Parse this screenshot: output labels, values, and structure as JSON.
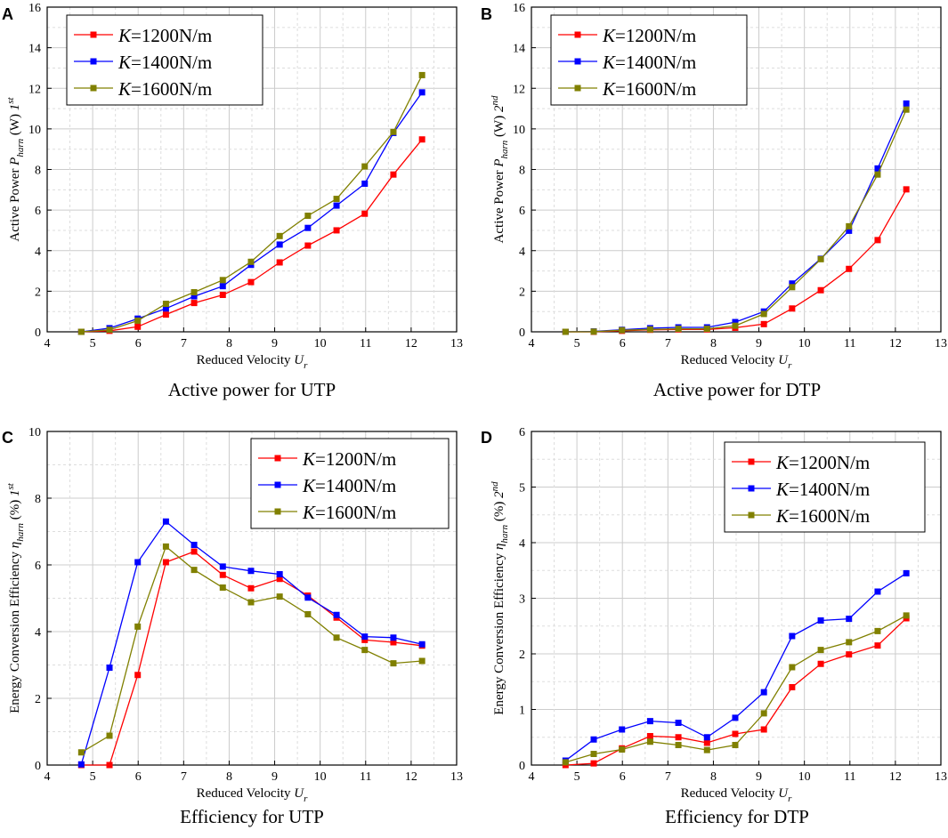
{
  "colors": {
    "k1200": "#ff0000",
    "k1400": "#0000ff",
    "k1600": "#808000",
    "grid": "#cccccc"
  },
  "chart_data": [
    {
      "type": "line",
      "panel": "A",
      "caption": "Active power for UTP",
      "xlabel": "Reduced Velocity ",
      "xlabel_sub": "r",
      "ylabel_pre": "Active Power  ",
      "ylabel_sub": "harn",
      "ylabel_mid": " (W) ",
      "ylabel_tail_sup": "st",
      "ylabel_tail": "1",
      "xlim": [
        4,
        13
      ],
      "ylim": [
        0,
        16
      ],
      "xticks": [
        "4",
        "5",
        "6",
        "7",
        "8",
        "9",
        "10",
        "11",
        "12",
        "13"
      ],
      "yticks": [
        "0",
        "2",
        "4",
        "6",
        "8",
        "10",
        "12",
        "14",
        "16"
      ],
      "legend_pos": "top-left",
      "x": [
        4.75,
        5.37,
        5.99,
        6.61,
        7.23,
        7.86,
        8.48,
        9.11,
        9.73,
        10.36,
        10.98,
        11.61,
        12.24
      ],
      "series": [
        {
          "name": "=1200N/m",
          "k": "K",
          "key": "k1200",
          "values": [
            0,
            0.05,
            0.25,
            0.85,
            1.42,
            1.82,
            2.45,
            3.42,
            4.25,
            5.0,
            5.82,
            7.75,
            9.48
          ]
        },
        {
          "name": "=1400N/m",
          "k": "K",
          "key": "k1400",
          "values": [
            0,
            0.18,
            0.65,
            1.15,
            1.75,
            2.25,
            3.3,
            4.3,
            5.12,
            6.22,
            7.3,
            9.8,
            11.8
          ]
        },
        {
          "name": "=1600N/m",
          "k": "K",
          "key": "k1600",
          "values": [
            0,
            0.1,
            0.55,
            1.38,
            1.95,
            2.55,
            3.45,
            4.72,
            5.72,
            6.55,
            8.15,
            9.85,
            12.65
          ]
        }
      ]
    },
    {
      "type": "line",
      "panel": "B",
      "caption": "Active power for DTP",
      "xlabel": "Reduced Velocity ",
      "xlabel_sub": "r",
      "ylabel_pre": "Active Power  ",
      "ylabel_sub": "harn",
      "ylabel_mid": " (W)  ",
      "ylabel_tail_sup": "nd",
      "ylabel_tail": "2",
      "xlim": [
        4,
        13
      ],
      "ylim": [
        0,
        16
      ],
      "xticks": [
        "4",
        "5",
        "6",
        "7",
        "8",
        "9",
        "10",
        "11",
        "12",
        "13"
      ],
      "yticks": [
        "0",
        "2",
        "4",
        "6",
        "8",
        "10",
        "12",
        "14",
        "16"
      ],
      "legend_pos": "top-left",
      "x": [
        4.75,
        5.37,
        5.99,
        6.61,
        7.23,
        7.86,
        8.48,
        9.11,
        9.73,
        10.36,
        10.98,
        11.61,
        12.24
      ],
      "series": [
        {
          "name": "=1200N/m",
          "k": "K",
          "key": "k1200",
          "values": [
            0,
            0,
            0.05,
            0.1,
            0.12,
            0.12,
            0.2,
            0.38,
            1.15,
            2.05,
            3.1,
            4.52,
            7.02
          ]
        },
        {
          "name": "=1400N/m",
          "k": "K",
          "key": "k1400",
          "values": [
            0,
            0.02,
            0.1,
            0.18,
            0.22,
            0.22,
            0.48,
            1.0,
            2.38,
            3.6,
            4.98,
            8.05,
            11.25
          ]
        },
        {
          "name": "=1600N/m",
          "k": "K",
          "key": "k1600",
          "values": [
            0,
            0.01,
            0.08,
            0.12,
            0.15,
            0.15,
            0.3,
            0.88,
            2.2,
            3.58,
            5.2,
            7.75,
            10.95
          ]
        }
      ]
    },
    {
      "type": "line",
      "panel": "C",
      "caption": "Efficiency for UTP",
      "xlabel": "Reduced Velocity ",
      "xlabel_sub": "r",
      "ylabel_pre": "Energy Conversion Efficiency  ",
      "ylabel_sub": "harn",
      "ylabel_mid": " (%) ",
      "ylabel_tail_sup": "st",
      "ylabel_tail": "1",
      "xlim": [
        4,
        13
      ],
      "ylim": [
        0,
        10
      ],
      "xticks": [
        "4",
        "5",
        "6",
        "7",
        "8",
        "9",
        "10",
        "11",
        "12",
        "13"
      ],
      "yticks": [
        "0",
        "2",
        "4",
        "6",
        "8",
        "10"
      ],
      "legend_pos": "top-right",
      "x": [
        4.75,
        5.37,
        5.99,
        6.61,
        7.23,
        7.86,
        8.48,
        9.11,
        9.73,
        10.36,
        10.98,
        11.61,
        12.24
      ],
      "series": [
        {
          "name": "=1200N/m",
          "k": "K",
          "key": "k1200",
          "values": [
            0,
            0,
            2.7,
            6.08,
            6.4,
            5.7,
            5.3,
            5.58,
            5.08,
            4.42,
            3.75,
            3.68,
            3.58
          ]
        },
        {
          "name": "=1400N/m",
          "k": "K",
          "key": "k1400",
          "values": [
            0.02,
            2.92,
            6.08,
            7.3,
            6.6,
            5.95,
            5.82,
            5.72,
            5.02,
            4.5,
            3.85,
            3.82,
            3.62
          ]
        },
        {
          "name": "=1600N/m",
          "k": "K",
          "key": "k1600",
          "values": [
            0.38,
            0.88,
            4.15,
            6.55,
            5.85,
            5.32,
            4.88,
            5.05,
            4.52,
            3.82,
            3.45,
            3.05,
            3.12
          ]
        }
      ]
    },
    {
      "type": "line",
      "panel": "D",
      "caption": "Efficiency for DTP",
      "xlabel": "Reduced Velocity ",
      "xlabel_sub": "r",
      "ylabel_pre": "Energy Conversion Efficiency  ",
      "ylabel_sub": "harn",
      "ylabel_mid": " (%)  ",
      "ylabel_tail_sup": "nd",
      "ylabel_tail": "2",
      "xlim": [
        4,
        13
      ],
      "ylim": [
        0,
        6
      ],
      "xticks": [
        "4",
        "5",
        "6",
        "7",
        "8",
        "9",
        "10",
        "11",
        "12",
        "13"
      ],
      "yticks": [
        "0",
        "1",
        "2",
        "3",
        "4",
        "5",
        "6"
      ],
      "legend_pos": "top-right",
      "x": [
        4.75,
        5.37,
        5.99,
        6.61,
        7.23,
        7.86,
        8.48,
        9.11,
        9.73,
        10.36,
        10.98,
        11.61,
        12.24
      ],
      "series": [
        {
          "name": "=1200N/m",
          "k": "K",
          "key": "k1200",
          "values": [
            0,
            0.03,
            0.3,
            0.52,
            0.5,
            0.4,
            0.56,
            0.64,
            1.4,
            1.82,
            1.99,
            2.15,
            2.64
          ]
        },
        {
          "name": "=1400N/m",
          "k": "K",
          "key": "k1400",
          "values": [
            0.08,
            0.46,
            0.64,
            0.79,
            0.76,
            0.5,
            0.85,
            1.31,
            2.32,
            2.6,
            2.63,
            3.12,
            3.45
          ]
        },
        {
          "name": "=1600N/m",
          "k": "K",
          "key": "k1600",
          "values": [
            0.05,
            0.2,
            0.28,
            0.42,
            0.36,
            0.27,
            0.36,
            0.93,
            1.76,
            2.07,
            2.21,
            2.41,
            2.69
          ]
        }
      ]
    }
  ]
}
